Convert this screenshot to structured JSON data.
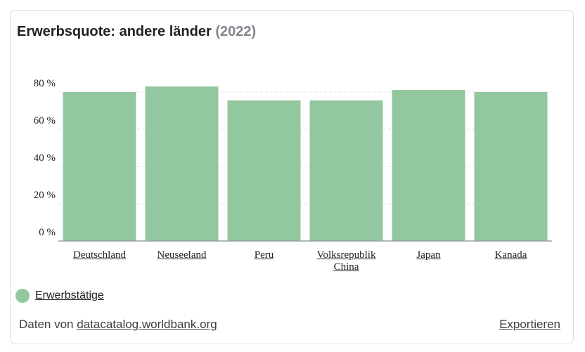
{
  "chart_data": {
    "type": "bar",
    "title": "Erwerbsquote: andere länder",
    "subtitle": "(2022)",
    "categories": [
      "Deutschland",
      "Neuseeland",
      "Peru",
      "Volksrepublik China",
      "Japan",
      "Kanada"
    ],
    "series": [
      {
        "name": "Erwerbstätige",
        "color": "#93c79f",
        "values": [
          80.0,
          83.0,
          75.5,
          75.5,
          81.1,
          80.0
        ]
      }
    ],
    "ylim": [
      0,
      100
    ],
    "yticks": [
      {
        "value": 0,
        "label": "0 %"
      },
      {
        "value": 20,
        "label": "20 %"
      },
      {
        "value": 40,
        "label": "40 %"
      },
      {
        "value": 60,
        "label": "60 %"
      },
      {
        "value": 80,
        "label": "80 %"
      }
    ],
    "grid": true
  },
  "footer": {
    "source_prefix": "Daten von",
    "source_link": "datacatalog.worldbank.org",
    "export": "Exportieren"
  }
}
